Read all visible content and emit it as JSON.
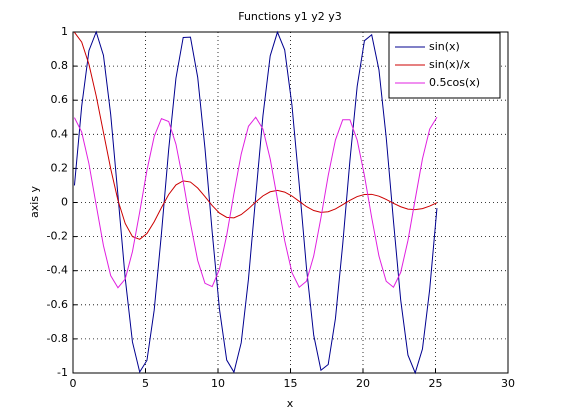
{
  "chart_data": {
    "type": "line",
    "title": "Functions y1 y2 y3",
    "x_label": "x",
    "y_label": "axis y",
    "x": [
      0.1,
      0.6,
      1.1,
      1.6,
      2.1,
      2.6,
      3.1,
      3.6,
      4.1,
      4.6,
      5.1,
      5.6,
      6.1,
      6.6,
      7.1,
      7.6,
      8.1,
      8.6,
      9.1,
      9.6,
      10.1,
      10.6,
      11.1,
      11.6,
      12.1,
      12.6,
      13.1,
      13.6,
      14.1,
      14.6,
      15.1,
      15.6,
      16.1,
      16.6,
      17.1,
      17.6,
      18.1,
      18.6,
      19.1,
      19.6,
      20.1,
      20.6,
      21.1,
      21.6,
      22.1,
      22.6,
      23.1,
      23.6,
      24.1,
      24.6,
      25.1
    ],
    "series": [
      {
        "name": "sin(x)",
        "color": "#00008f",
        "values": [
          0.1,
          0.565,
          0.891,
          1.0,
          0.863,
          0.516,
          0.042,
          -0.443,
          -0.818,
          -0.994,
          -0.926,
          -0.631,
          -0.182,
          0.312,
          0.729,
          0.968,
          0.97,
          0.734,
          0.319,
          -0.174,
          -0.625,
          -0.924,
          -0.995,
          -0.823,
          -0.45,
          0.034,
          0.509,
          0.86,
          0.999,
          0.895,
          0.571,
          0.107,
          -0.382,
          -0.778,
          -0.984,
          -0.95,
          -0.68,
          -0.246,
          0.248,
          0.682,
          0.949,
          0.984,
          0.778,
          0.382,
          -0.108,
          -0.572,
          -0.895,
          -0.999,
          -0.859,
          -0.509,
          -0.033
        ]
      },
      {
        "name": "sin(x)/x",
        "color": "#cc0000",
        "values": [
          0.998,
          0.941,
          0.81,
          0.625,
          0.411,
          0.198,
          0.013,
          -0.123,
          -0.2,
          -0.216,
          -0.182,
          -0.113,
          -0.03,
          0.047,
          0.103,
          0.127,
          0.12,
          0.085,
          0.035,
          -0.018,
          -0.062,
          -0.087,
          -0.09,
          -0.071,
          -0.037,
          0.003,
          0.039,
          0.063,
          0.071,
          0.061,
          0.038,
          0.007,
          -0.024,
          -0.047,
          -0.058,
          -0.054,
          -0.038,
          -0.013,
          0.013,
          0.035,
          0.047,
          0.048,
          0.037,
          0.018,
          -0.005,
          -0.025,
          -0.039,
          -0.042,
          -0.036,
          -0.021,
          -0.001
        ]
      },
      {
        "name": "0.5cos(x)",
        "color": "#e020e0",
        "values": [
          0.498,
          0.413,
          0.227,
          -0.015,
          -0.253,
          -0.429,
          -0.5,
          -0.449,
          -0.288,
          -0.056,
          0.189,
          0.388,
          0.492,
          0.475,
          0.342,
          0.124,
          -0.122,
          -0.34,
          -0.474,
          -0.493,
          -0.391,
          -0.192,
          0.053,
          0.284,
          0.447,
          0.5,
          0.431,
          0.255,
          0.019,
          -0.224,
          -0.411,
          -0.497,
          -0.462,
          -0.314,
          -0.089,
          0.158,
          0.367,
          0.485,
          0.485,
          0.366,
          0.158,
          -0.089,
          -0.314,
          -0.462,
          -0.497,
          -0.41,
          -0.223,
          0.019,
          0.256,
          0.431,
          0.5
        ]
      }
    ],
    "xlim": [
      0,
      30
    ],
    "xticks": [
      0,
      5,
      10,
      15,
      20,
      25,
      30
    ],
    "ylim": [
      -1,
      1
    ],
    "yticks": [
      -1,
      -0.8,
      -0.6,
      -0.4,
      -0.2,
      0,
      0.2,
      0.4,
      0.6,
      0.8,
      1
    ],
    "grid": true,
    "legend": "top-right"
  }
}
